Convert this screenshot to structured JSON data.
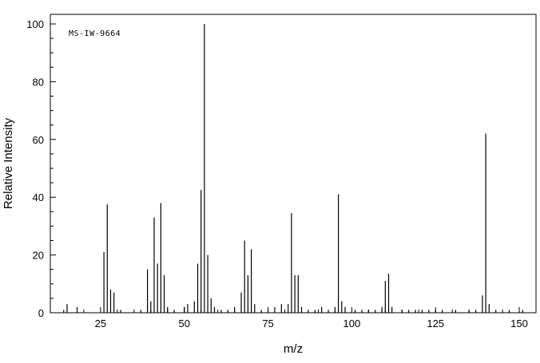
{
  "chart_data": {
    "type": "bar",
    "subtype": "mass-spectrum",
    "annotation": "MS-IW-9664",
    "xlabel": "m/z",
    "ylabel": "Relative Intensity",
    "xlim": [
      10,
      155
    ],
    "ylim": [
      0,
      100
    ],
    "x_major_ticks": [
      25,
      50,
      75,
      100,
      125,
      150
    ],
    "x_minor_tick_step": 5,
    "y_major_ticks": [
      0,
      20,
      40,
      60,
      80,
      100
    ],
    "y_minor_tick_step": 5,
    "grid": false,
    "legend": false,
    "colors": {
      "line": "#000000",
      "text": "#000000",
      "background": "#ffffff"
    },
    "series": [
      {
        "name": "Relative Intensity",
        "points": [
          [
            14,
            1
          ],
          [
            15,
            3
          ],
          [
            18,
            2
          ],
          [
            26,
            21
          ],
          [
            27,
            37.5
          ],
          [
            28,
            8
          ],
          [
            29,
            7
          ],
          [
            31,
            1
          ],
          [
            37,
            1
          ],
          [
            39,
            15
          ],
          [
            40,
            4
          ],
          [
            41,
            33
          ],
          [
            42,
            17
          ],
          [
            43,
            38
          ],
          [
            44,
            13
          ],
          [
            45,
            2
          ],
          [
            47,
            1
          ],
          [
            50,
            2
          ],
          [
            51,
            3
          ],
          [
            53,
            4
          ],
          [
            54,
            17
          ],
          [
            55,
            42.5
          ],
          [
            56,
            100
          ],
          [
            57,
            20
          ],
          [
            58,
            5
          ],
          [
            59,
            2
          ],
          [
            61,
            1
          ],
          [
            63,
            1
          ],
          [
            65,
            2
          ],
          [
            67,
            7
          ],
          [
            68,
            25
          ],
          [
            69,
            13
          ],
          [
            70,
            22
          ],
          [
            71,
            3
          ],
          [
            73,
            1
          ],
          [
            75,
            1
          ],
          [
            77,
            2
          ],
          [
            79,
            3
          ],
          [
            81,
            3
          ],
          [
            82,
            34.5
          ],
          [
            83,
            13
          ],
          [
            84,
            13
          ],
          [
            85,
            2
          ],
          [
            87,
            1
          ],
          [
            89,
            1
          ],
          [
            91,
            2
          ],
          [
            93,
            1
          ],
          [
            95,
            2
          ],
          [
            96,
            41
          ],
          [
            97,
            4
          ],
          [
            98,
            2
          ],
          [
            101,
            1
          ],
          [
            103,
            1
          ],
          [
            105,
            1
          ],
          [
            107,
            1
          ],
          [
            109,
            2
          ],
          [
            110,
            11
          ],
          [
            111,
            13.5
          ],
          [
            112,
            2
          ],
          [
            115,
            1
          ],
          [
            117,
            1
          ],
          [
            119,
            1
          ],
          [
            121,
            1
          ],
          [
            123,
            1
          ],
          [
            125,
            1
          ],
          [
            127,
            1
          ],
          [
            131,
            1
          ],
          [
            135,
            1
          ],
          [
            137,
            1
          ],
          [
            139,
            6
          ],
          [
            140,
            62
          ],
          [
            141,
            3
          ],
          [
            143,
            1
          ],
          [
            147,
            1
          ],
          [
            151,
            1
          ]
        ]
      }
    ],
    "base_peak": {
      "mz": 56,
      "intensity": 100
    }
  }
}
